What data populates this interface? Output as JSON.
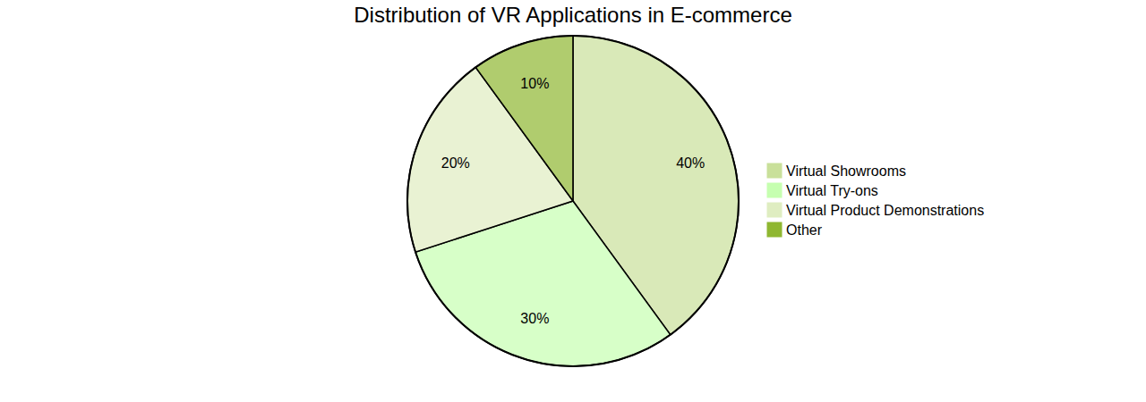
{
  "chart_data": {
    "type": "pie",
    "title": "Distribution of VR Applications in E-commerce",
    "categories": [
      "Virtual Showrooms",
      "Virtual Try-ons",
      "Virtual Product Demonstrations",
      "Other"
    ],
    "values": [
      40,
      30,
      20,
      10
    ],
    "value_labels": [
      "40%",
      "30%",
      "20%",
      "10%"
    ],
    "colors": [
      "#c9e09a",
      "#c6ffb0",
      "#dfedc1",
      "#8fb731"
    ],
    "data_labels": true,
    "legend": "right"
  }
}
